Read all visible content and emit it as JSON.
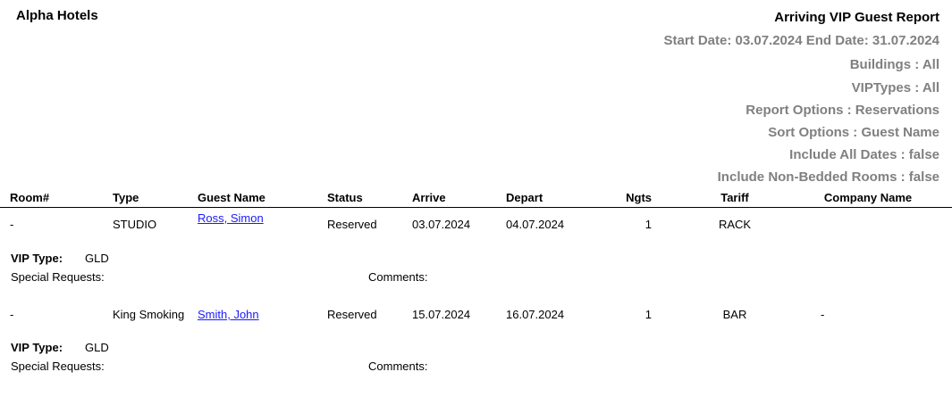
{
  "hotel_name": "Alpha Hotels",
  "report_title": "Arriving VIP Guest Report",
  "parameters": [
    "Start Date: 03.07.2024  End Date: 31.07.2024",
    "Buildings : All",
    "VIPTypes : All",
    "Report Options : Reservations",
    "Sort Options : Guest Name",
    "Include All Dates : false",
    "Include Non-Bedded Rooms : false"
  ],
  "columns": {
    "room": "Room#",
    "type": "Type",
    "guest": "Guest Name",
    "status": "Status",
    "arrive": "Arrive",
    "depart": "Depart",
    "nights": "Ngts",
    "tariff": "Tariff",
    "company": "Company Name"
  },
  "labels": {
    "vip_type": "VIP Type:",
    "special_requests": "Special Requests:",
    "comments": "Comments:"
  },
  "rows": [
    {
      "room": "-",
      "type": "STUDIO",
      "guest": "Ross, Simon",
      "status": "Reserved",
      "arrive": "03.07.2024",
      "depart": "04.07.2024",
      "nights": "1",
      "tariff": "RACK",
      "company": "",
      "vip_type": "GLD"
    },
    {
      "room": "-",
      "type": "King Smoking",
      "guest": "Smith, John",
      "status": "Reserved",
      "arrive": "15.07.2024",
      "depart": "16.07.2024",
      "nights": "1",
      "tariff": "BAR",
      "company": "-",
      "vip_type": "GLD"
    }
  ],
  "colors": {
    "parameter_text": "#808080",
    "link": "#1a1aff"
  }
}
